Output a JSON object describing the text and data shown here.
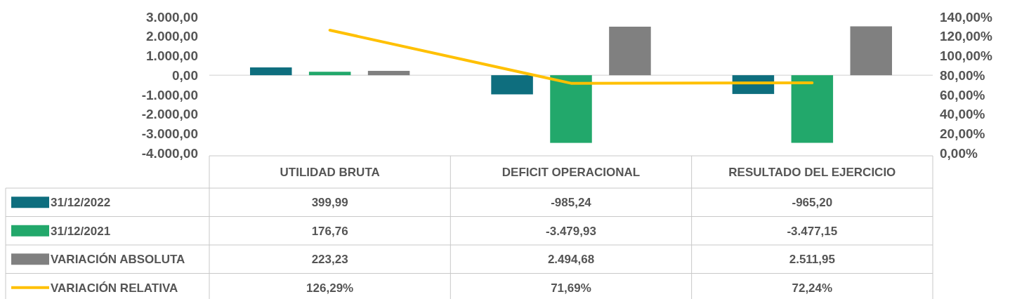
{
  "chart_data": {
    "type": "bar",
    "categories": [
      "UTILIDAD BRUTA",
      "DEFICIT  OPERACIONAL",
      "RESULTADO  DEL EJERCICIO"
    ],
    "series": [
      {
        "name": "31/12/2022",
        "color": "#0e6e7e",
        "values": [
          399.99,
          -985.24,
          -965.2
        ],
        "value_labels": [
          "399,99",
          "-985,24",
          "-965,20"
        ]
      },
      {
        "name": "31/12/2021",
        "color": "#22a86b",
        "values": [
          176.76,
          -3479.93,
          -3477.15
        ],
        "value_labels": [
          "176,76",
          "-3.479,93",
          "-3.477,15"
        ]
      },
      {
        "name": "VARIACIÓN ABSOLUTA",
        "color": "#808080",
        "values": [
          223.23,
          2494.68,
          2511.95
        ],
        "value_labels": [
          "223,23",
          "2.494,68",
          "2.511,95"
        ]
      },
      {
        "name": "VARIACIÓN RELATIVA",
        "type": "line",
        "axis": "y2",
        "color": "#ffc000",
        "values": [
          126.29,
          71.69,
          72.24
        ],
        "value_labels": [
          "126,29%",
          "71,69%",
          "72,24%"
        ]
      }
    ],
    "ylim": [
      -4000,
      3000
    ],
    "yticks": [
      {
        "value": -4000,
        "label": "-4.000,00"
      },
      {
        "value": -3000,
        "label": "-3.000,00"
      },
      {
        "value": -2000,
        "label": "-2.000,00"
      },
      {
        "value": -1000,
        "label": "-1.000,00"
      },
      {
        "value": 0,
        "label": "0,00"
      },
      {
        "value": 1000,
        "label": "1.000,00"
      },
      {
        "value": 2000,
        "label": "2.000,00"
      },
      {
        "value": 3000,
        "label": "3.000,00"
      }
    ],
    "y2lim": [
      0,
      140
    ],
    "y2ticks": [
      {
        "value": 0,
        "label": "0,00%"
      },
      {
        "value": 20,
        "label": "20,00%"
      },
      {
        "value": 40,
        "label": "40,00%"
      },
      {
        "value": 60,
        "label": "60,00%"
      },
      {
        "value": 80,
        "label": "80,00%"
      },
      {
        "value": 100,
        "label": "100,00%"
      },
      {
        "value": 120,
        "label": "120,00%"
      },
      {
        "value": 140,
        "label": "140,00%"
      }
    ],
    "legend": "bottom",
    "marker": "none",
    "line_style": "solid"
  }
}
